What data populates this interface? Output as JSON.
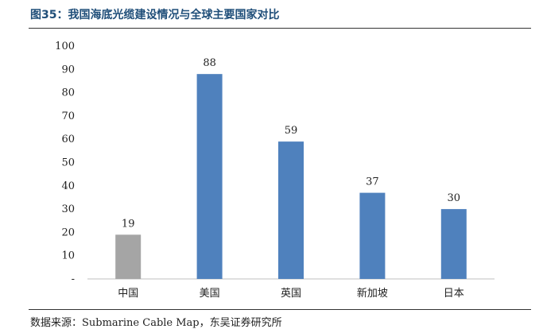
{
  "figure": {
    "title": "图35：我国海底光缆建设情况与全球主要国家对比",
    "source": "数据来源：Submarine Cable Map，东吴证券研究所"
  },
  "chart_data": {
    "type": "bar",
    "categories": [
      "中国",
      "美国",
      "英国",
      "新加坡",
      "日本"
    ],
    "values": [
      19,
      88,
      59,
      37,
      30
    ],
    "ylim": [
      0,
      100
    ],
    "yticks": [
      0,
      10,
      20,
      30,
      40,
      50,
      60,
      70,
      80,
      90,
      100
    ],
    "ytick_labels": [
      "-",
      "10",
      "20",
      "30",
      "40",
      "50",
      "60",
      "70",
      "80",
      "90",
      "100"
    ],
    "grid": false,
    "legend": "none",
    "colors": [
      "#a5a5a5",
      "#4f81bd",
      "#4f81bd",
      "#4f81bd",
      "#4f81bd"
    ],
    "data_labels": [
      "19",
      "88",
      "59",
      "37",
      "30"
    ]
  }
}
